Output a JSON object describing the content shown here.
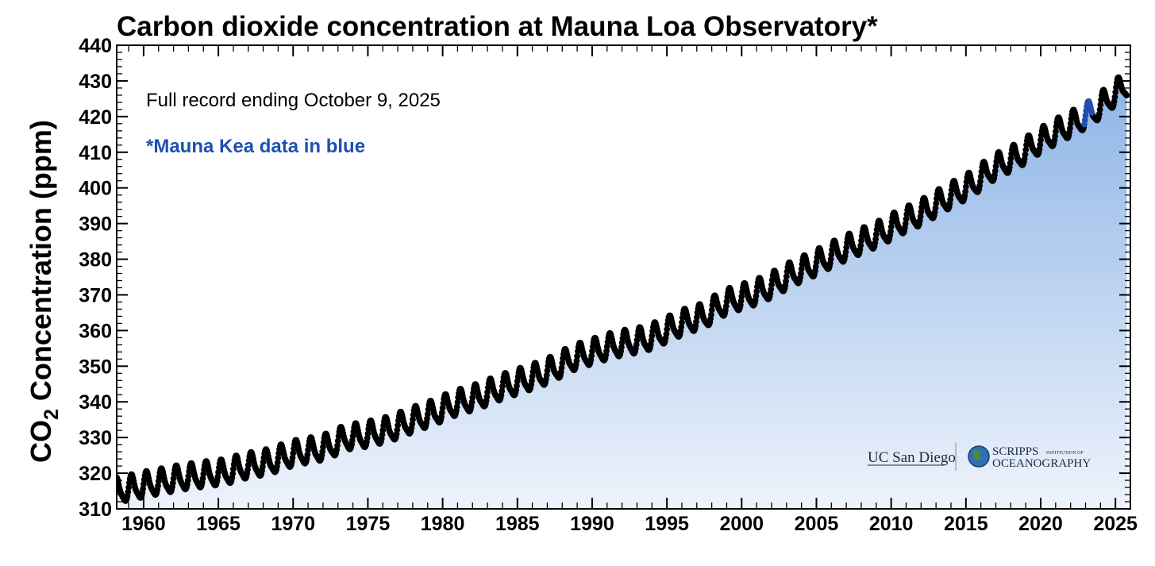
{
  "chart_data": {
    "type": "scatter",
    "title": "Carbon dioxide concentration at Mauna Loa Observatory*",
    "xlabel": "",
    "ylabel": "CO",
    "ylabel_sub": "2",
    "ylabel_suffix": " Concentration (ppm)",
    "xlim": [
      1958.2,
      2026.0
    ],
    "ylim": [
      310,
      440
    ],
    "xticks": [
      1960,
      1965,
      1970,
      1975,
      1980,
      1985,
      1990,
      1995,
      2000,
      2005,
      2010,
      2015,
      2020,
      2025
    ],
    "yticks": [
      310,
      320,
      330,
      340,
      350,
      360,
      370,
      380,
      390,
      400,
      410,
      420,
      430,
      440
    ],
    "annual_means": {
      "x": [
        1959,
        1960,
        1961,
        1962,
        1963,
        1964,
        1965,
        1966,
        1967,
        1968,
        1969,
        1970,
        1971,
        1972,
        1973,
        1974,
        1975,
        1976,
        1977,
        1978,
        1979,
        1980,
        1981,
        1982,
        1983,
        1984,
        1985,
        1986,
        1987,
        1988,
        1989,
        1990,
        1991,
        1992,
        1993,
        1994,
        1995,
        1996,
        1997,
        1998,
        1999,
        2000,
        2001,
        2002,
        2003,
        2004,
        2005,
        2006,
        2007,
        2008,
        2009,
        2010,
        2011,
        2012,
        2013,
        2014,
        2015,
        2016,
        2017,
        2018,
        2019,
        2020,
        2021,
        2022,
        2023,
        2024
      ],
      "y": [
        316.0,
        316.9,
        317.6,
        318.5,
        319.0,
        319.6,
        320.0,
        321.4,
        322.2,
        323.0,
        324.6,
        325.7,
        326.3,
        327.5,
        329.7,
        330.2,
        331.1,
        332.1,
        333.8,
        335.4,
        336.8,
        338.8,
        340.1,
        341.4,
        343.1,
        344.6,
        346.0,
        347.4,
        349.2,
        351.6,
        353.1,
        354.4,
        355.7,
        356.5,
        357.2,
        358.9,
        360.9,
        362.7,
        363.8,
        366.8,
        368.5,
        369.7,
        371.3,
        373.5,
        375.9,
        377.7,
        379.8,
        381.9,
        383.8,
        385.6,
        387.4,
        389.9,
        391.7,
        393.9,
        396.5,
        398.7,
        401.0,
        404.4,
        406.8,
        408.7,
        411.7,
        414.2,
        416.5,
        418.6,
        421.1,
        424.6
      ]
    },
    "seasonal_amplitude_ppm": 3.3,
    "mauna_kea_segment": {
      "x": [
        2022.9,
        2023.45
      ],
      "note": "Mauna Kea data in blue"
    },
    "series_color": "#000000",
    "mauna_kea_color": "#1f4fb0",
    "fill_gradient": [
      "#8db4e6",
      "#eef3fb"
    ]
  },
  "annotations": {
    "record_note": "Full record ending October 9, 2025",
    "blue_note": "*Mauna Kea data in blue"
  },
  "logos": {
    "ucsd": "UC San Diego",
    "scripps_line1": "SCRIPPS",
    "scripps_small": "INSTITUTION OF",
    "scripps_line2": "OCEANOGRAPHY"
  }
}
